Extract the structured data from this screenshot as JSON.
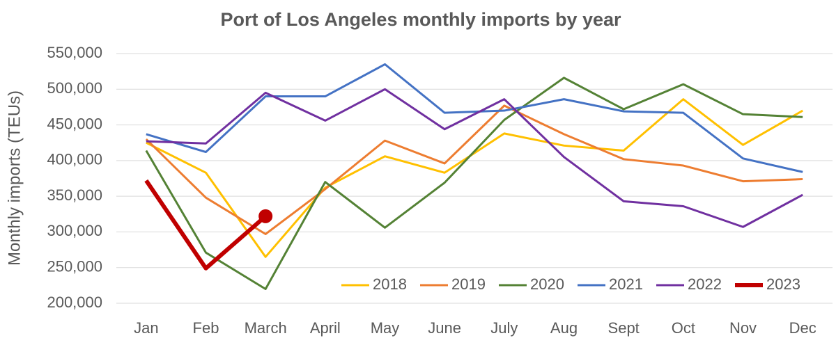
{
  "chart_data": {
    "type": "line",
    "title": "Port of Los Angeles monthly imports by year",
    "y_label": "Monthly imports (TEUs)",
    "categories": [
      "Jan",
      "Feb",
      "March",
      "April",
      "May",
      "June",
      "July",
      "Aug",
      "Sept",
      "Oct",
      "Nov",
      "Dec"
    ],
    "series": [
      {
        "name": "2018",
        "color": "#ffc000",
        "values": [
          425000,
          383000,
          265000,
          362000,
          406000,
          383000,
          438000,
          421000,
          414000,
          486000,
          422000,
          470000
        ]
      },
      {
        "name": "2019",
        "color": "#ed7d31",
        "values": [
          430000,
          348000,
          297000,
          360000,
          428000,
          396000,
          477000,
          437000,
          402000,
          393000,
          371000,
          374000
        ]
      },
      {
        "name": "2020",
        "color": "#548235",
        "values": [
          414000,
          271000,
          220000,
          370000,
          306000,
          369000,
          457000,
          516000,
          472000,
          507000,
          465000,
          461000
        ]
      },
      {
        "name": "2021",
        "color": "#4472c4",
        "values": [
          437000,
          412000,
          490000,
          490000,
          535000,
          467000,
          470000,
          486000,
          469000,
          467000,
          403000,
          384000
        ]
      },
      {
        "name": "2022",
        "color": "#7030a0",
        "values": [
          427000,
          424000,
          495000,
          456000,
          500000,
          444000,
          486000,
          405000,
          343000,
          336000,
          307000,
          352000
        ]
      },
      {
        "name": "2023",
        "color": "#c00000",
        "values": [
          372000,
          249000,
          322000,
          null,
          null,
          null,
          null,
          null,
          null,
          null,
          null,
          null
        ]
      }
    ],
    "ylim": [
      200000,
      550000
    ],
    "yticks": [
      {
        "value": 200000,
        "label": "200,000"
      },
      {
        "value": 250000,
        "label": "250,000"
      },
      {
        "value": 300000,
        "label": "300,000"
      },
      {
        "value": 350000,
        "label": "350,000"
      },
      {
        "value": 400000,
        "label": "400,000"
      },
      {
        "value": 450000,
        "label": "450,000"
      },
      {
        "value": 500000,
        "label": "500,000"
      },
      {
        "value": 550000,
        "label": "550,000"
      }
    ],
    "grid": true,
    "legend": "bottom-right"
  }
}
